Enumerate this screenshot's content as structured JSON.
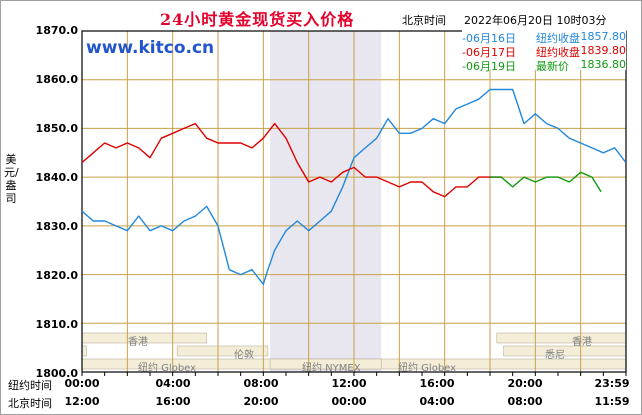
{
  "title": "24小时黄金现货买入价格",
  "timezone_label": "北京时间",
  "datetime": "2022年06月20日 10时03分",
  "site": "www.kitco.cn",
  "y_axis_label": "美元/盎司",
  "legend": [
    {
      "date": "-06月16日",
      "label": "纽约收盘",
      "value": "1857.80",
      "color": "#2288dd"
    },
    {
      "date": "-06月17日",
      "label": "纽约收盘",
      "value": "1839.80",
      "color": "#dd0000"
    },
    {
      "date": "-06月19日",
      "label": "最新价",
      "value": "1836.80",
      "color": "#119911"
    }
  ],
  "x_rows": {
    "ny_label": "纽约时间",
    "bj_label": "北京时间",
    "ny_ticks": [
      "00:00",
      "04:00",
      "08:00",
      "12:00",
      "16:00",
      "20:00",
      "23:59"
    ],
    "bj_ticks": [
      "12:00",
      "16:00",
      "20:00",
      "00:00",
      "04:00",
      "08:00",
      "11:59"
    ]
  },
  "markets": [
    "香港",
    "纽约 Globex",
    "伦敦",
    "纽约 NYMEX",
    "纽约 Globex",
    "香港",
    "悉尼"
  ],
  "chart_data": {
    "type": "line",
    "x_unit": "hours after 00:00 New York time",
    "xlim": [
      0,
      24
    ],
    "ylim": [
      1800,
      1870
    ],
    "y_ticks": [
      "1870.0",
      "1860.0",
      "1850.0",
      "1840.0",
      "1830.0",
      "1820.0",
      "1810.0",
      "1800.0"
    ],
    "grid": true,
    "shaded_interval": [
      8.3,
      13.2
    ],
    "series": [
      {
        "name": "06月16日",
        "color": "#2288dd",
        "x": [
          0,
          0.5,
          1,
          1.5,
          2,
          2.5,
          3,
          3.5,
          4,
          4.5,
          5,
          5.5,
          6,
          6.5,
          7,
          7.5,
          8,
          8.2,
          8.5,
          9,
          9.5,
          10,
          10.5,
          11,
          11.5,
          12,
          12.5,
          13,
          13.5,
          14,
          14.5,
          15,
          15.5,
          16,
          16.5,
          17,
          17.5,
          18,
          18.5,
          19,
          19.5,
          20,
          20.5,
          21,
          21.5,
          22,
          22.5,
          23,
          23.5,
          23.99
        ],
        "y": [
          1833,
          1831,
          1831,
          1830,
          1829,
          1832,
          1829,
          1830,
          1829,
          1831,
          1832,
          1834,
          1830,
          1821,
          1820,
          1821,
          1818,
          1821,
          1825,
          1829,
          1831,
          1829,
          1831,
          1833,
          1838,
          1844,
          1846,
          1848,
          1852,
          1849,
          1849,
          1850,
          1852,
          1851,
          1854,
          1855,
          1856,
          1858,
          1858,
          1858,
          1851,
          1853,
          1851,
          1850,
          1848,
          1847,
          1846,
          1845,
          1846,
          1843
        ]
      },
      {
        "name": "06月17日",
        "color": "#dd0000",
        "x": [
          0,
          0.5,
          1,
          1.5,
          2,
          2.5,
          3,
          3.5,
          4,
          4.5,
          5,
          5.5,
          6,
          6.5,
          7,
          7.5,
          8,
          8.5,
          9,
          9.5,
          10,
          10.5,
          11,
          11.5,
          12,
          12.5,
          13,
          13.5,
          14,
          14.5,
          15,
          15.5,
          16,
          16.5,
          17,
          17.5,
          18,
          18.5
        ],
        "y": [
          1843,
          1845,
          1847,
          1846,
          1847,
          1846,
          1844,
          1848,
          1849,
          1850,
          1851,
          1848,
          1847,
          1847,
          1847,
          1846,
          1848,
          1851,
          1848,
          1843,
          1839,
          1840,
          1839,
          1841,
          1842,
          1840,
          1840,
          1839,
          1838,
          1839,
          1839,
          1837,
          1836,
          1838,
          1838,
          1840,
          1840,
          1840
        ]
      },
      {
        "name": "06月19日",
        "color": "#119911",
        "x": [
          18,
          18.5,
          19,
          19.5,
          20,
          20.5,
          21,
          21.5,
          22,
          22.5,
          22.9
        ],
        "y": [
          1840,
          1840,
          1838,
          1840,
          1839,
          1840,
          1840,
          1839,
          1841,
          1840,
          1837
        ]
      }
    ]
  }
}
